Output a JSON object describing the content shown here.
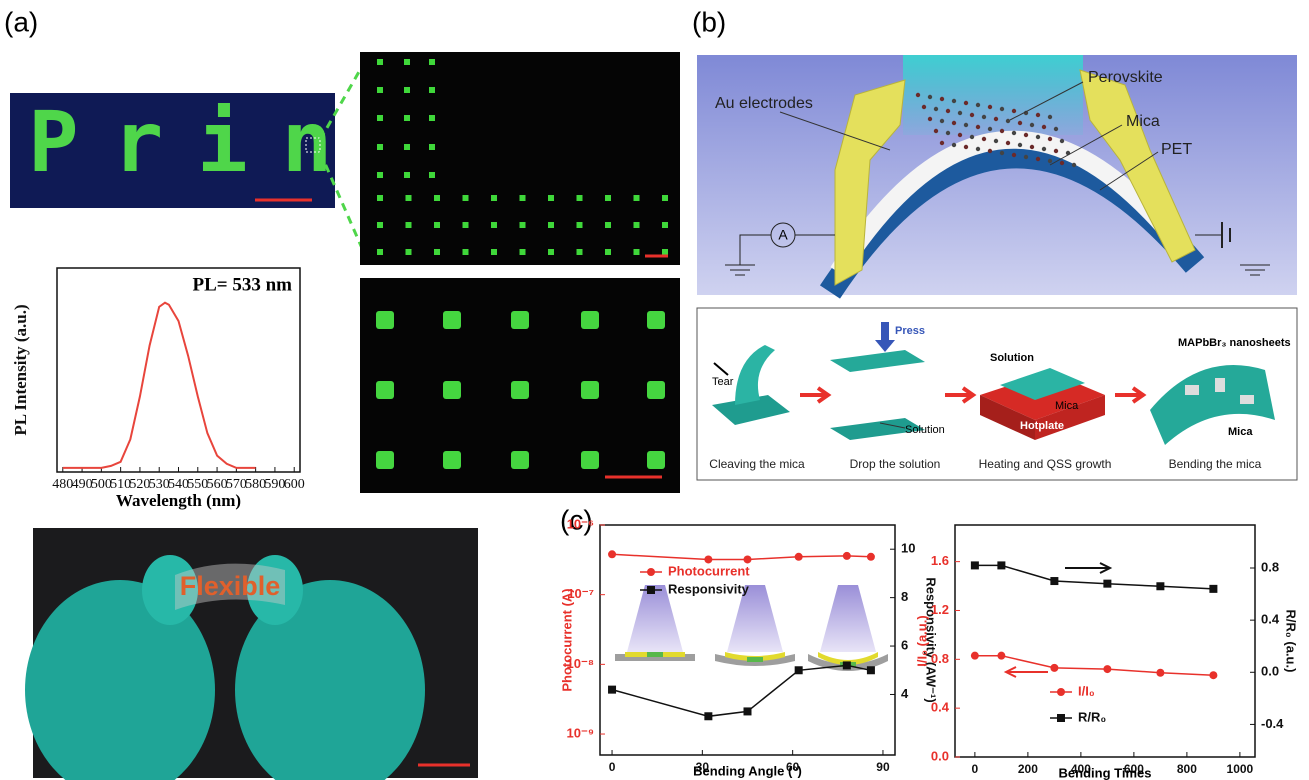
{
  "panels": {
    "a": "(a)",
    "b": "(b)",
    "c": "(c)"
  },
  "images": {
    "print_text": "Print",
    "flexible_text": "Flexible"
  },
  "schematic": {
    "au": "Au electrodes",
    "perovskite": "Perovskite",
    "mica": "Mica",
    "pet": "PET",
    "ammeter": "A"
  },
  "process": {
    "tear": "Tear",
    "press": "Press",
    "solution_1": "Solution",
    "solution_2": "Solution",
    "mica_1": "Mica",
    "hotplate": "Hotplate",
    "nanosheets": "MAPbBr₃ nanosheets",
    "mica_2": "Mica",
    "steps": [
      "Cleaving the mica",
      "Drop the solution",
      "Heating and QSS growth",
      "Bending the mica"
    ]
  },
  "chart_data": [
    {
      "type": "line",
      "annotation": "PL= 533 nm",
      "xlabel": "Wavelength (nm)",
      "ylabel": "PL Intensity (a.u.)",
      "x": [
        480,
        490,
        500,
        505,
        510,
        515,
        520,
        525,
        530,
        533,
        535,
        540,
        545,
        550,
        555,
        560,
        565,
        570,
        580
      ],
      "series": [
        {
          "color": "#e8453c",
          "values": [
            0.02,
            0.02,
            0.02,
            0.03,
            0.05,
            0.16,
            0.37,
            0.62,
            0.81,
            0.83,
            0.82,
            0.74,
            0.57,
            0.37,
            0.19,
            0.08,
            0.04,
            0.02,
            0.02
          ]
        }
      ],
      "xlim": [
        477,
        603
      ],
      "xticks": [
        480,
        490,
        500,
        510,
        520,
        530,
        540,
        550,
        560,
        570,
        580,
        590,
        600
      ],
      "ylim": [
        0,
        1
      ]
    },
    {
      "type": "line",
      "xlabel": "Bending Angle (°)",
      "ylabel": "Photocurrent (A)",
      "y2label": "Responsivity (AW⁻¹)",
      "x": [
        0,
        32,
        45,
        62,
        78,
        86
      ],
      "log_y": true,
      "series": [
        {
          "name": "Photocurrent",
          "color": "#e8312b",
          "marker": "circle",
          "axis": "y",
          "values": [
            3.8e-07,
            3.2e-07,
            3.2e-07,
            3.5e-07,
            3.6e-07,
            3.5e-07
          ]
        },
        {
          "name": "Responsivity",
          "color": "#111111",
          "marker": "square",
          "axis": "y2",
          "values": [
            4.2,
            3.1,
            3.3,
            5.0,
            5.2,
            5.0
          ]
        }
      ],
      "xlim": [
        -4,
        94
      ],
      "xticks": [
        0,
        30,
        60,
        90
      ],
      "ylim": [
        5e-10,
        1e-06
      ],
      "yticks": [
        {
          "value": 1e-09,
          "label": "10⁻⁹"
        },
        {
          "value": 1e-08,
          "label": "10⁻⁸"
        },
        {
          "value": 1e-07,
          "label": "10⁻⁷"
        },
        {
          "value": 1e-06,
          "label": "10⁻⁶"
        }
      ],
      "y2lim": [
        1.5,
        11
      ],
      "y2ticks": [
        4,
        6,
        8,
        10
      ]
    },
    {
      "type": "line",
      "xlabel": "Bending Times",
      "ylabel": "I/I₀ (a.u.)",
      "y2label": "R/R₀ (a.u.)",
      "x": [
        0,
        100,
        300,
        500,
        700,
        900
      ],
      "series": [
        {
          "name": "I/I₀",
          "color": "#e8312b",
          "marker": "circle",
          "axis": "y",
          "values": [
            0.83,
            0.83,
            0.73,
            0.72,
            0.69,
            0.67
          ]
        },
        {
          "name": "R/R₀",
          "color": "#111111",
          "marker": "square",
          "axis": "y2",
          "values": [
            0.82,
            0.82,
            0.7,
            0.68,
            0.66,
            0.64
          ]
        }
      ],
      "xlim": [
        -75,
        1057
      ],
      "xticks": [
        0,
        200,
        400,
        600,
        800,
        1000
      ],
      "ylim": [
        0,
        1.9
      ],
      "yticks": [
        {
          "value": 0,
          "label": "0.0"
        },
        0.4,
        0.8,
        1.2,
        1.6
      ],
      "y2lim": [
        -0.65,
        1.13
      ],
      "y2ticks": [
        -0.4,
        {
          "value": 0,
          "label": "0.0"
        },
        0.4,
        0.8
      ]
    }
  ]
}
